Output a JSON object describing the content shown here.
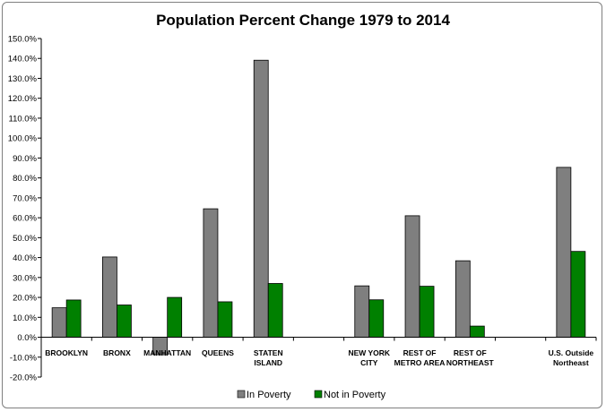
{
  "chart_data": {
    "type": "bar",
    "title": "Population Percent Change 1979 to 2014",
    "categories": [
      [
        "BROOKLYN"
      ],
      [
        "BRONX"
      ],
      [
        "MANHATTAN"
      ],
      [
        "QUEENS"
      ],
      [
        "STATEN",
        "ISLAND"
      ],
      [
        ""
      ],
      [
        "NEW YORK",
        "CITY"
      ],
      [
        "REST OF",
        "METRO AREA"
      ],
      [
        "REST OF",
        "NORTHEAST"
      ],
      [
        ""
      ],
      [
        "U.S. Outside",
        "Northeast"
      ]
    ],
    "series": [
      {
        "name": "In Poverty",
        "color": "#7f7f7f",
        "values": [
          14.8,
          40.3,
          -8.8,
          64.5,
          139.1,
          null,
          25.8,
          61.0,
          38.4,
          null,
          85.3
        ]
      },
      {
        "name": "Not in Poverty",
        "color": "#008000",
        "values": [
          18.7,
          16.2,
          20.0,
          17.8,
          27.0,
          null,
          18.8,
          25.6,
          5.6,
          null,
          43.1
        ]
      }
    ],
    "ylim": [
      -20,
      150
    ],
    "ytick_step": 10,
    "ytick_format": "percent_1dp",
    "grid": false,
    "legend_position": "bottom"
  }
}
